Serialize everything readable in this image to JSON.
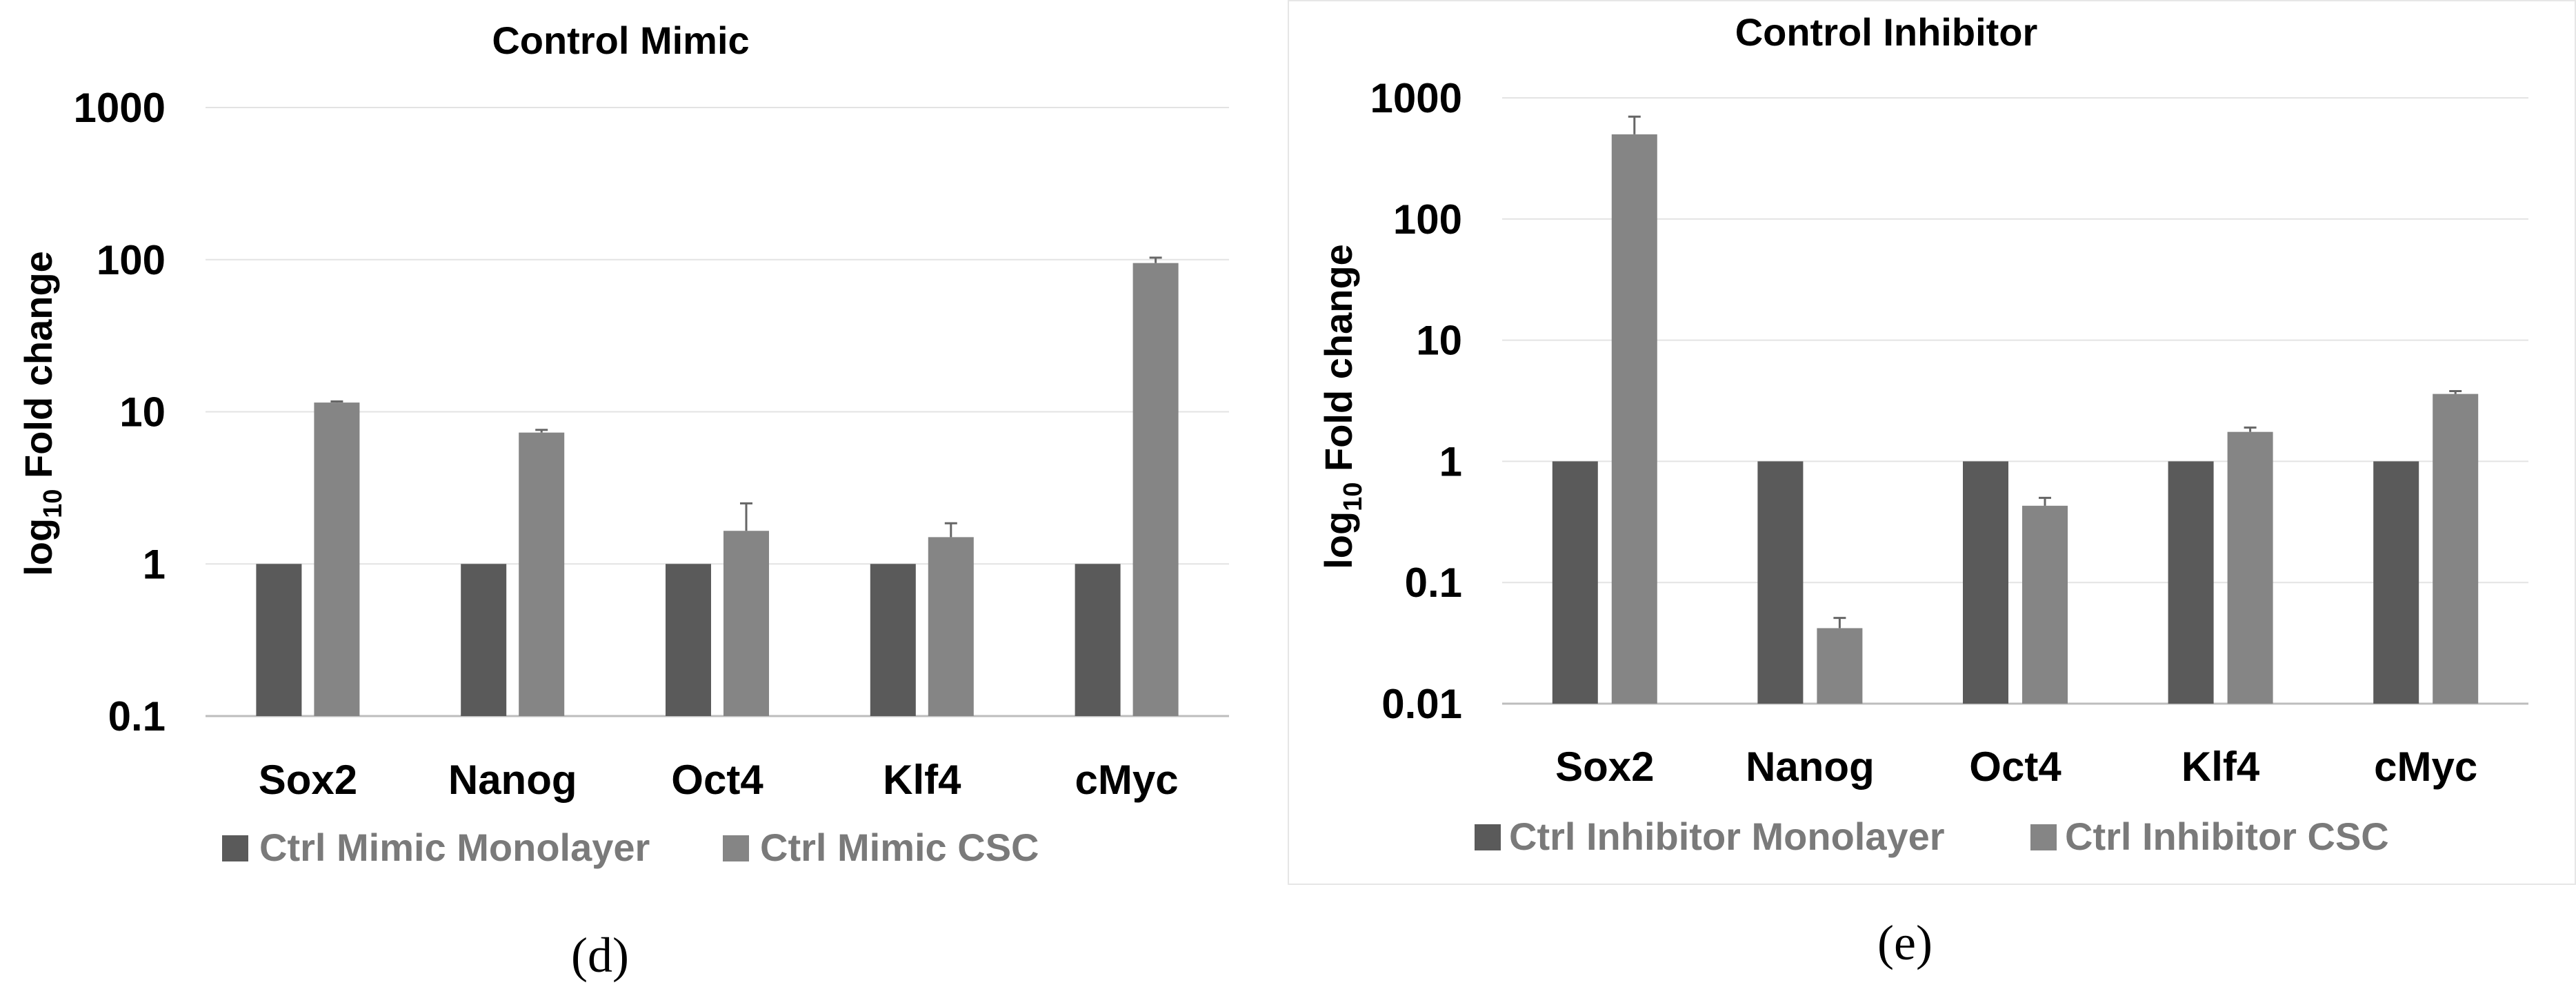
{
  "figure": {
    "panel_d_tag": "(d)",
    "panel_e_tag": "(e)"
  },
  "chart_data": [
    {
      "type": "bar",
      "title": "Control Mimic",
      "ylabel": {
        "base": "log",
        "sub": "10",
        "rest": " Fold change"
      },
      "xlabel": "",
      "y_scale": "log",
      "ylim": [
        0.1,
        1000
      ],
      "y_ticks": [
        "0.1",
        "1",
        "10",
        "100",
        "1000"
      ],
      "grid": true,
      "legend_position": "bottom",
      "categories": [
        "Sox2",
        "Nanog",
        "Oct4",
        "Klf4",
        "cMyc"
      ],
      "series": [
        {
          "name": "Ctrl Mimic Monolayer",
          "color": "#5a5a5a",
          "values": [
            1,
            1,
            1,
            1,
            1
          ],
          "errors": [
            0,
            0,
            0,
            0,
            0
          ]
        },
        {
          "name": "Ctrl Mimic CSC",
          "color": "#858585",
          "values": [
            11.5,
            7.3,
            1.65,
            1.5,
            95
          ],
          "errors": [
            0.2,
            0.3,
            0.85,
            0.35,
            8
          ]
        }
      ]
    },
    {
      "type": "bar",
      "title": "Control Inhibitor",
      "ylabel": {
        "base": "log",
        "sub": "10",
        "rest": " Fold change"
      },
      "xlabel": "",
      "y_scale": "log",
      "ylim": [
        0.01,
        1000
      ],
      "y_ticks": [
        "0.01",
        "0.1",
        "1",
        "10",
        "100",
        "1000"
      ],
      "grid": true,
      "legend_position": "bottom",
      "categories": [
        "Sox2",
        "Nanog",
        "Oct4",
        "Klf4",
        "cMyc"
      ],
      "series": [
        {
          "name": "Ctrl Inhibitor Monolayer",
          "color": "#5a5a5a",
          "values": [
            1,
            1,
            1,
            1,
            1
          ],
          "errors": [
            0,
            0,
            0,
            0,
            0
          ]
        },
        {
          "name": "Ctrl Inhibitor CSC",
          "color": "#858585",
          "values": [
            500,
            0.042,
            0.43,
            1.75,
            3.6
          ],
          "errors": [
            200,
            0.009,
            0.07,
            0.15,
            0.2
          ]
        }
      ]
    }
  ]
}
